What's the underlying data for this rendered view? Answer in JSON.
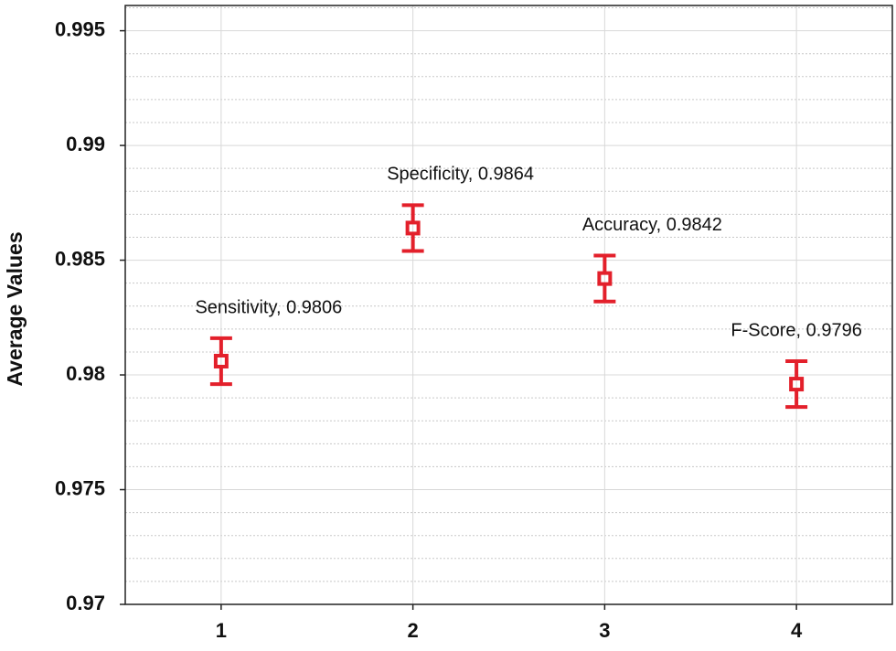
{
  "chart_data": {
    "type": "errorbar",
    "y_label": "Average Values",
    "x": [
      1,
      2,
      3,
      4
    ],
    "values": [
      0.9806,
      0.9864,
      0.9842,
      0.9796
    ],
    "errors": [
      0.001,
      0.001,
      0.001,
      0.001
    ],
    "value_labels": [
      "Sensitivity, 0.9806",
      "Specificity, 0.9864",
      "Accuracy, 0.9842",
      "F-Score, 0.9796"
    ],
    "color": "#e3202b",
    "xlim": [
      0.5,
      4.5
    ],
    "xticks": [
      1,
      2,
      3,
      4
    ],
    "ylim": [
      0.97,
      0.9961
    ],
    "yticks": [
      0.97,
      0.975,
      0.98,
      0.985,
      0.99,
      0.995
    ],
    "minor_yticks": [
      0.971,
      0.972,
      0.973,
      0.974,
      0.976,
      0.977,
      0.978,
      0.979,
      0.981,
      0.982,
      0.983,
      0.984,
      0.986,
      0.987,
      0.988,
      0.989,
      0.991,
      0.992,
      0.993,
      0.994,
      0.996
    ],
    "grid": true
  }
}
